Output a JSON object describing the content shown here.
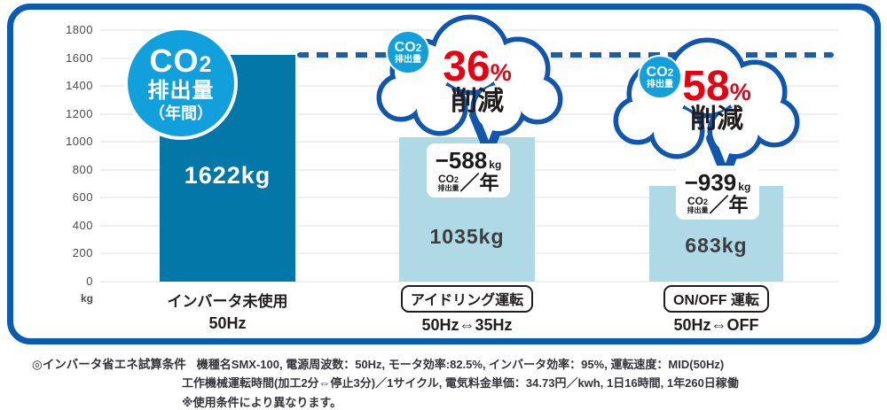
{
  "chart_data": {
    "type": "bar",
    "title": "CO2排出量（年間）",
    "unit": "kg",
    "ylim": [
      0,
      1800
    ],
    "yticks": [
      0,
      200,
      400,
      600,
      800,
      1000,
      1200,
      1400,
      1600,
      1800
    ],
    "grid": true,
    "reference_line_value": 1622,
    "categories": [
      "インバータ未使用 50Hz",
      "アイドリング運転 50Hz⇔35Hz",
      "ON/OFF 運転 50Hz⇔OFF"
    ],
    "values": [
      1622,
      1035,
      683
    ],
    "bars": [
      {
        "value": 1622,
        "value_label": "1622kg",
        "cat_line1": "インバータ未使用",
        "cat_line2": "50Hz"
      },
      {
        "value": 1035,
        "value_label": "1035kg",
        "cat_line1": "アイドリング運転",
        "cat_line2": "50Hz⇔35Hz",
        "reduction": {
          "percent": "36",
          "percent_sign": "%",
          "word": "削減",
          "delta": "−588",
          "delta_unit": "kg",
          "per_year": "／年"
        }
      },
      {
        "value": 683,
        "value_label": "683kg",
        "cat_line1": "ON/OFF 運転",
        "cat_line2": "50Hz⇔OFF",
        "reduction": {
          "percent": "58",
          "percent_sign": "%",
          "word": "削減",
          "delta": "−939",
          "delta_unit": "kg",
          "per_year": "／年"
        }
      }
    ]
  },
  "title_badge": {
    "co": "CO",
    "two": "2",
    "line2": "排出量",
    "line3": "（年間）"
  },
  "co2_badge": {
    "co": "CO",
    "two": "2",
    "line2": "排出量"
  },
  "notes": {
    "line1_label": "◎インバータ省エネ試算条件",
    "line1_text": "機種名SMX-100, 電源周波数：50Hz, モータ効率:82.5%, インバータ効率：95%, 運転速度：MID(50Hz)",
    "line2": "工作機械運転時間(加工2分⇔停止3分)／1サイクル, 電気料金単価：34.73円／kwh, 1日16時間, 1年260日稼働",
    "line3": "※使用条件により異なります。"
  },
  "colors": {
    "frame_blue": "#0b5cb1",
    "dark_bar": "#0377a7",
    "light_bar": "#b0d9e6",
    "badge_blue": "#12a0dc",
    "cloud_outline": "#1156ad",
    "dash_blue": "#1b5cad",
    "accent_red": "#e50012"
  }
}
